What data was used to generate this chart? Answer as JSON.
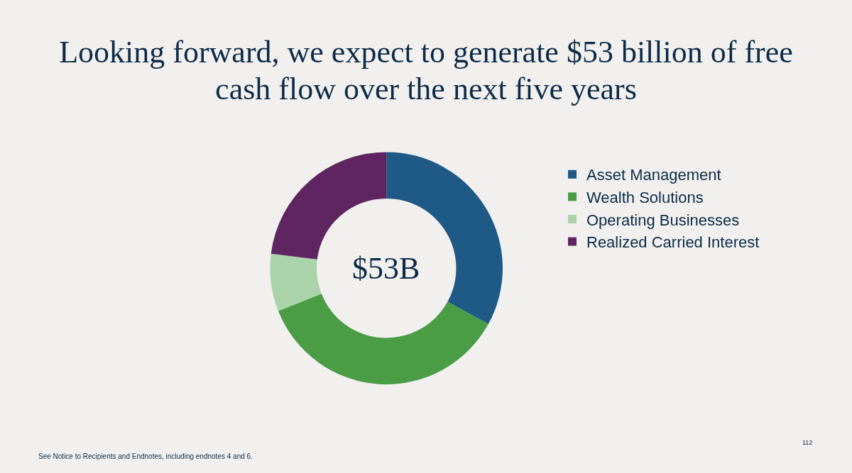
{
  "chart_data": {
    "type": "donut",
    "title": "Looking forward, we expect to generate $53 billion of free cash flow over the next five years",
    "categories": [
      "Asset Management",
      "Wealth Solutions",
      "Operating Businesses",
      "Realized Carried Interest"
    ],
    "values": [
      33,
      36,
      8,
      23
    ],
    "colors": [
      "#1f5a87",
      "#4a9c45",
      "#abd3a9",
      "#5e2560"
    ],
    "legend": "right",
    "annotations": [
      "$53B",
      "See Notice to Recipients and Endnotes, including endnotes 4 and 6.",
      "112"
    ]
  }
}
